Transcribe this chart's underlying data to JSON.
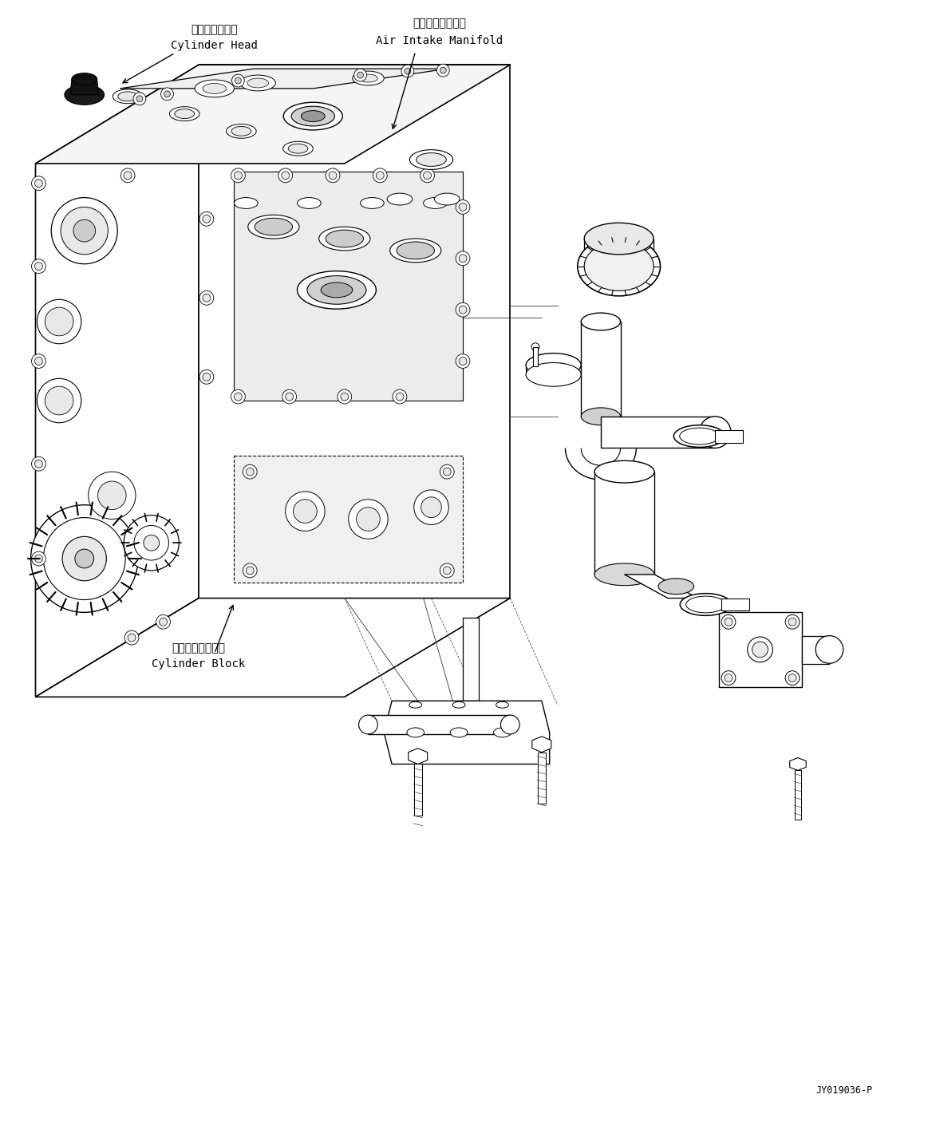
{
  "background_color": "#ffffff",
  "fig_width": 11.63,
  "fig_height": 14.11,
  "dpi": 100,
  "label_cylinder_head_jp": "シリンダヘッド",
  "label_cylinder_head_en": "Cylinder Head",
  "label_air_manifold_jp": "吸気マニホールド",
  "label_air_manifold_en": "Air Intake Manifold",
  "label_cylinder_block_jp": "シリンダブロック",
  "label_cylinder_block_en": "Cylinder Block",
  "part_number": "JY019036-P",
  "font_size_label": 10,
  "font_size_pn": 8.5
}
